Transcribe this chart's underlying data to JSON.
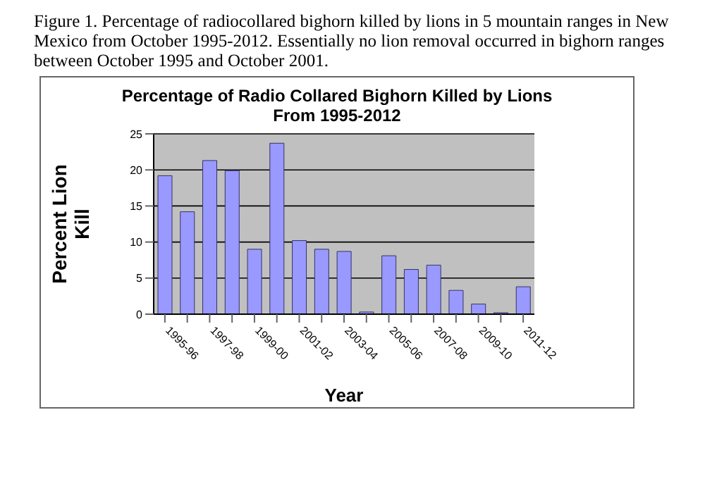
{
  "chart_data": {
    "type": "bar",
    "title": "Percentage of Radio Collared Bighorn Killed by Lions From 1995-2012",
    "xlabel": "Year",
    "ylabel": "Percent Lion Kill",
    "annotations": [
      "Figure 1.  Percentage of radiocollared bighorn killed by lions in 5 mountain ranges in New Mexico from October 1995-2012.  Essentially no lion removal occurred in bighorn ranges between October 1995 and October 2001."
    ],
    "categories": [
      "1995-96",
      null,
      "1997-98",
      null,
      "1999-00",
      null,
      "2001-02",
      null,
      "2003-04",
      null,
      "2005-06",
      null,
      "2007-08",
      null,
      "2009-10",
      null,
      "2011-12"
    ],
    "values": [
      19.2,
      14.2,
      21.3,
      19.9,
      9,
      23.7,
      10.2,
      9,
      8.7,
      0.3,
      8.1,
      6.2,
      6.8,
      3.3,
      1.4,
      0.2,
      3.8
    ],
    "color": "#9999ff",
    "ylim": [
      0,
      25
    ],
    "yticks": [
      0,
      5,
      10,
      15,
      20,
      25
    ],
    "grid": "y",
    "legend": false
  }
}
